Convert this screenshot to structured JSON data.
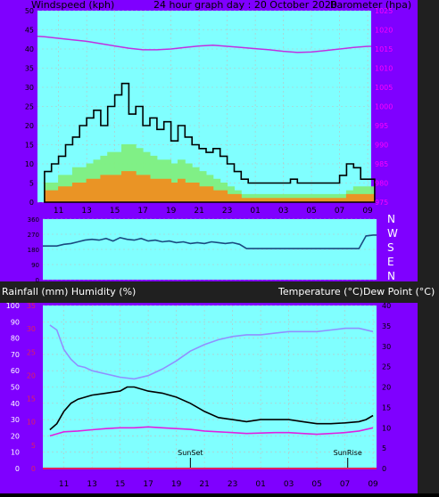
{
  "header": {
    "left": "Windspeed (kph)",
    "center": "24 hour graph day : 20 October 2020",
    "right": "Barometer (hpa)"
  },
  "compass": [
    "N",
    "W",
    "S",
    "E",
    "N"
  ],
  "lower_header": {
    "left": "Rainfall (mm)  Humidity (%)",
    "right": "Temperature (°C)Dew Point (°C)"
  },
  "markers": {
    "sunset": "SunSet",
    "sunrise": "SunRise"
  },
  "colors": {
    "background": "#7f00ff",
    "plot": "#80ffff",
    "barometer": "#c030e0",
    "wind_avg": "#f09020",
    "wind_mid": "#80f080",
    "wind_gust": "#000000",
    "direction": "#1a4a80",
    "humidity": "#9090ff",
    "temperature": "#000000",
    "dewpoint": "#e020e0",
    "rain_axis": "#e02060"
  },
  "chart_data": [
    {
      "type": "line",
      "title": "24 hour graph day : 20 October 2020",
      "ylabel": "Windspeed (kph)",
      "y2label": "Barometer (hpa)",
      "x_ticks": [
        "11",
        "13",
        "15",
        "17",
        "19",
        "21",
        "23",
        "01",
        "03",
        "05",
        "07",
        "09"
      ],
      "x_range": [
        9.5,
        33.25
      ],
      "y_ticks": [
        "0",
        "5",
        "10",
        "15",
        "20",
        "25",
        "30",
        "35",
        "40",
        "45",
        "50"
      ],
      "ylim": [
        0,
        50
      ],
      "y2_ticks": [
        "975",
        "980",
        "985",
        "990",
        "995",
        "1000",
        "1005",
        "1010",
        "1015",
        "1020",
        "1025"
      ],
      "y2lim": [
        975,
        1025
      ],
      "series": [
        {
          "key": "wind_avg",
          "x": [
            10,
            10.5,
            11,
            11.5,
            12,
            12.5,
            13,
            13.5,
            14,
            14.5,
            15,
            15.5,
            16,
            16.5,
            17,
            17.5,
            18,
            18.5,
            19,
            19.5,
            20,
            20.5,
            21,
            21.5,
            22,
            22.5,
            23,
            23.5,
            24,
            24.5,
            25,
            25.5,
            26,
            26.5,
            27,
            27.5,
            28,
            28.5,
            29,
            29.5,
            30,
            30.5,
            31,
            31.5,
            32,
            32.5,
            33
          ],
          "values": [
            3,
            3,
            4,
            4,
            5,
            5,
            6,
            6,
            7,
            7,
            7,
            8,
            8,
            7,
            7,
            6,
            6,
            6,
            5,
            6,
            5,
            5,
            4,
            4,
            3,
            3,
            2,
            2,
            1,
            1,
            1,
            1,
            1,
            1,
            1,
            1,
            1,
            1,
            1,
            1,
            1,
            1,
            1,
            2,
            2,
            2,
            2
          ]
        },
        {
          "key": "wind_mid",
          "x": [
            10,
            10.5,
            11,
            11.5,
            12,
            12.5,
            13,
            13.5,
            14,
            14.5,
            15,
            15.5,
            16,
            16.5,
            17,
            17.5,
            18,
            18.5,
            19,
            19.5,
            20,
            20.5,
            21,
            21.5,
            22,
            22.5,
            23,
            23.5,
            24,
            24.5,
            25,
            25.5,
            26,
            26.5,
            27,
            27.5,
            28,
            28.5,
            29,
            29.5,
            30,
            30.5,
            31,
            31.5,
            32,
            32.5,
            33
          ],
          "values": [
            5,
            5,
            7,
            7,
            9,
            9,
            10,
            11,
            12,
            13,
            13,
            15,
            15,
            14,
            13,
            12,
            11,
            11,
            10,
            11,
            10,
            9,
            8,
            7,
            6,
            5,
            4,
            3,
            2,
            2,
            2,
            2,
            2,
            2,
            2,
            2,
            2,
            2,
            2,
            2,
            2,
            2,
            2,
            3,
            4,
            4,
            4
          ]
        },
        {
          "key": "wind_gust",
          "x": [
            10,
            10.5,
            11,
            11.5,
            12,
            12.5,
            13,
            13.5,
            14,
            14.5,
            15,
            15.5,
            16,
            16.5,
            17,
            17.5,
            18,
            18.5,
            19,
            19.5,
            20,
            20.5,
            21,
            21.5,
            22,
            22.5,
            23,
            23.5,
            24,
            24.5,
            25,
            25.5,
            26,
            26.5,
            27,
            27.5,
            28,
            28.5,
            29,
            29.5,
            30,
            30.5,
            31,
            31.5,
            32,
            32.5,
            33
          ],
          "values": [
            8,
            10,
            12,
            15,
            17,
            20,
            22,
            24,
            20,
            25,
            28,
            31,
            23,
            25,
            20,
            22,
            19,
            21,
            16,
            20,
            17,
            15,
            14,
            13,
            14,
            12,
            10,
            8,
            6,
            5,
            5,
            5,
            5,
            5,
            5,
            6,
            5,
            5,
            5,
            5,
            5,
            5,
            7,
            10,
            9,
            6,
            6
          ]
        },
        {
          "key": "barometer",
          "axis": "right",
          "x": [
            9.5,
            10,
            11,
            12,
            13,
            14,
            15,
            16,
            17,
            18,
            19,
            20,
            21,
            22,
            23,
            24,
            25,
            26,
            27,
            28,
            29,
            30,
            31,
            32,
            33,
            33.25
          ],
          "values": [
            1018.3,
            1018.2,
            1017.8,
            1017.4,
            1017.0,
            1016.4,
            1015.8,
            1015.2,
            1014.8,
            1014.8,
            1015.0,
            1015.4,
            1015.8,
            1016.0,
            1015.7,
            1015.4,
            1015.1,
            1014.8,
            1014.4,
            1014.1,
            1014.2,
            1014.6,
            1015.0,
            1015.4,
            1015.7,
            1015.7
          ]
        }
      ]
    },
    {
      "type": "line",
      "ylabel": "Wind direction",
      "y_ticks": [
        "0",
        "90",
        "180",
        "270",
        "360"
      ],
      "ylim": [
        0,
        360
      ],
      "x_range": [
        9.5,
        33.25
      ],
      "series": [
        {
          "key": "direction",
          "x": [
            9.5,
            10,
            10.5,
            11,
            11.5,
            12,
            12.5,
            13,
            13.5,
            14,
            14.5,
            15,
            15.5,
            16,
            16.5,
            17,
            17.5,
            18,
            18.5,
            19,
            19.5,
            20,
            20.5,
            21,
            21.5,
            22,
            22.5,
            23,
            23.5,
            24,
            25,
            26,
            27,
            28,
            29,
            30,
            31,
            32,
            32.5,
            33,
            33.25
          ],
          "values": [
            200,
            200,
            200,
            210,
            215,
            225,
            235,
            240,
            235,
            245,
            230,
            250,
            240,
            235,
            245,
            230,
            235,
            225,
            230,
            220,
            225,
            215,
            220,
            215,
            225,
            220,
            215,
            220,
            210,
            185,
            185,
            185,
            185,
            185,
            185,
            185,
            185,
            185,
            260,
            265,
            265
          ]
        }
      ]
    },
    {
      "type": "line",
      "ylabel": "Rainfall (mm)  Humidity (%)",
      "y2label": "Temperature (°C)Dew Point (°C)",
      "x_ticks": [
        "11",
        "13",
        "15",
        "17",
        "19",
        "21",
        "23",
        "01",
        "03",
        "05",
        "07",
        "09"
      ],
      "x_range": [
        9.5,
        33.25
      ],
      "y_ticks": [
        "0",
        "10",
        "20",
        "30",
        "40",
        "50",
        "60",
        "70",
        "80",
        "90",
        "100"
      ],
      "ylim": [
        0,
        100
      ],
      "rain_ticks": [
        "0",
        "5",
        "10",
        "15",
        "20",
        "25",
        "30",
        "35"
      ],
      "rain_lim": [
        0,
        35
      ],
      "y2_ticks": [
        "0",
        "5",
        "10",
        "15",
        "20",
        "25",
        "30",
        "35",
        "40"
      ],
      "y2lim": [
        0,
        40
      ],
      "series": [
        {
          "key": "humidity",
          "x": [
            10,
            10.5,
            11,
            11.5,
            12,
            12.5,
            13,
            14,
            15,
            16,
            17,
            18,
            19,
            20,
            21,
            22,
            23,
            24,
            25,
            26,
            27,
            28,
            29,
            30,
            31,
            32,
            33
          ],
          "values": [
            88,
            85,
            73,
            67,
            63,
            62,
            60,
            58,
            56,
            55,
            57,
            61,
            66,
            72,
            76,
            79,
            81,
            82,
            82,
            83,
            84,
            84,
            84,
            85,
            86,
            86,
            84
          ]
        },
        {
          "key": "temperature",
          "axis": "right",
          "x": [
            10,
            10.5,
            11,
            11.5,
            12,
            13,
            14,
            15,
            15.5,
            16,
            17,
            18,
            19,
            20,
            21,
            22,
            23,
            24,
            25,
            26,
            27,
            28,
            29,
            30,
            31,
            32,
            32.5,
            33
          ],
          "values": [
            9.5,
            11,
            14,
            16,
            17,
            18,
            18.5,
            19,
            20,
            20,
            19,
            18.5,
            17.5,
            16,
            14,
            12.5,
            12,
            11.5,
            12,
            12,
            12,
            11.5,
            11,
            11,
            11.2,
            11.5,
            12,
            13
          ]
        },
        {
          "key": "dewpoint",
          "axis": "right",
          "x": [
            10,
            10.5,
            11,
            12,
            13,
            14,
            15,
            16,
            17,
            18,
            19,
            20,
            21,
            22,
            23,
            24,
            25,
            26,
            27,
            28,
            29,
            30,
            31,
            32,
            33
          ],
          "values": [
            8,
            8.5,
            9,
            9.2,
            9.5,
            9.8,
            10,
            10,
            10.2,
            10,
            9.8,
            9.6,
            9.2,
            9,
            8.8,
            8.6,
            8.7,
            8.8,
            8.8,
            8.6,
            8.4,
            8.6,
            8.8,
            9.2,
            10
          ]
        },
        {
          "key": "rain",
          "axis": "rain",
          "x": [
            9.5,
            33.25
          ],
          "values": [
            0,
            0
          ]
        }
      ],
      "markers": [
        {
          "label": "SunSet",
          "x": 20.0
        },
        {
          "label": "SunRise",
          "x": 31.2
        }
      ]
    }
  ]
}
